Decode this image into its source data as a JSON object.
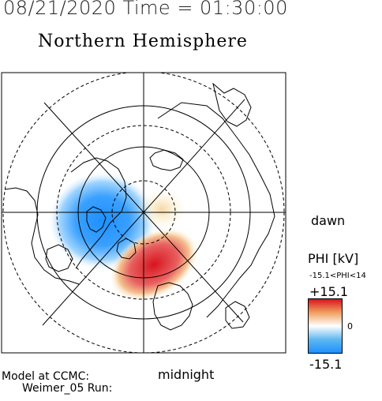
{
  "header": {
    "title": "08/21/2020 Time = 01:30:00",
    "subtitle": "Northern Hemisphere"
  },
  "map": {
    "direction_right": "dawn",
    "direction_bottom": "midnight",
    "colors": {
      "positive": "#d8141e",
      "negative": "#1e90ff",
      "land_outline": "#000000",
      "grid": "#000000"
    }
  },
  "colorbar": {
    "label": "PHI [kV]",
    "range_text": "-15.1<PHI<14",
    "max_label": "+15.1",
    "zero_label": "0",
    "min_label": "-15.1"
  },
  "footer": {
    "model_line": "Model at CCMC:",
    "run_line": "Weimer_05  Run:"
  }
}
